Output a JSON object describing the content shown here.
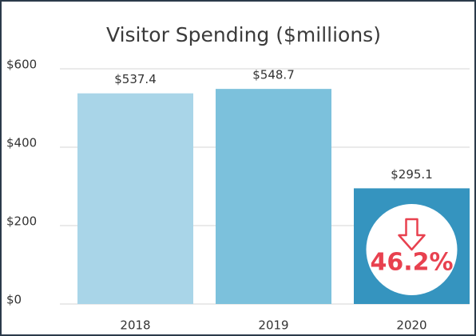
{
  "chart_data": {
    "type": "bar",
    "title": "Visitor Spending ($millions)",
    "categories": [
      "2018",
      "2019",
      "2020"
    ],
    "values": [
      537.4,
      548.7,
      295.1
    ],
    "value_labels": [
      "$537.4",
      "$548.7",
      "$295.1"
    ],
    "colors": [
      "#a9d5e8",
      "#7cc1dc",
      "#3594bf"
    ],
    "ylim": [
      0,
      600
    ],
    "yticks": [
      {
        "value": 0,
        "label": "$0"
      },
      {
        "value": 200,
        "label": "$200"
      },
      {
        "value": 400,
        "label": "$400"
      },
      {
        "value": 600,
        "label": "$600"
      }
    ],
    "grid": true,
    "annotation": "46.2%"
  }
}
